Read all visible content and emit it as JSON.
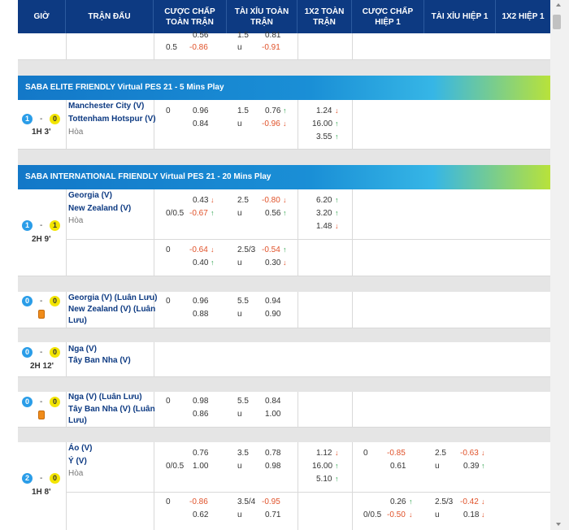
{
  "headers": [
    "GIỜ",
    "TRẬN ĐẤU",
    "CƯỢC CHẤP TOÀN TRẬN",
    "TÀI XỈU TOÀN TRẬN",
    "1X2 TOÀN TRẬN",
    "CƯỢC CHẤP HIỆP 1",
    "TÀI XỈU HIỆP 1",
    "1X2 HIỆP 1"
  ],
  "top_partial": {
    "hcap_line": "0.5",
    "hcap_top": "0.56",
    "hcap_bot": "-0.86",
    "ou_top_line": "1.5",
    "ou_top": "0.81",
    "ou_bot_line": "u",
    "ou_bot": "-0.91"
  },
  "leagues": [
    "SABA ELITE FRIENDLY Virtual PES 21 - 5 Mins Play",
    "SABA INTERNATIONAL FRIENDLY Virtual PES 21 - 20 Mins Play"
  ],
  "matches": {
    "m1": {
      "home": "Manchester City (V)",
      "away": "Tottenham Hotspur (V)",
      "draw": "Hòa",
      "score_h": "1",
      "score_a": "0",
      "time": "1H 3'",
      "hcap_line": "0",
      "hcap_top": "0.96",
      "hcap_bot": "0.84",
      "ou_line": "1.5",
      "ou_u": "u",
      "ou_top": "0.76",
      "ou_bot": "-0.96",
      "x1": "1.24",
      "x2": "16.00",
      "x3": "3.55"
    },
    "m2": {
      "home": "Georgia (V)",
      "away": "New Zealand (V)",
      "draw": "Hòa",
      "score_h": "1",
      "score_a": "1",
      "time": "2H 9'",
      "hcap_line": "0/0.5",
      "hcap_top": "0.43",
      "hcap_bot": "-0.67",
      "ou_line": "2.5",
      "ou_u": "u",
      "ou_top": "-0.80",
      "ou_bot": "0.56",
      "x1": "6.20",
      "x2": "3.20",
      "x3": "1.48",
      "r2_hcap_line": "0",
      "r2_hcap_top": "-0.64",
      "r2_hcap_bot": "0.40",
      "r2_ou_line": "2.5/3",
      "r2_ou_u": "u",
      "r2_ou_top": "-0.54",
      "r2_ou_bot": "0.30"
    },
    "m3": {
      "home": "Georgia (V) (Luân Lưu)",
      "away1": "New Zealand (V) (Luân",
      "away2": "Lưu)",
      "score_h": "0",
      "score_a": "0",
      "hcap_line": "0",
      "hcap_top": "0.96",
      "hcap_bot": "0.88",
      "ou_line": "5.5",
      "ou_u": "u",
      "ou_top": "0.94",
      "ou_bot": "0.90"
    },
    "m4": {
      "home": "Nga (V)",
      "away": "Tây Ban Nha (V)",
      "score_h": "0",
      "score_a": "0",
      "time": "2H 12'"
    },
    "m5": {
      "home": "Nga (V) (Luân Lưu)",
      "away1": "Tây Ban Nha (V) (Luân",
      "away2": "Lưu)",
      "score_h": "0",
      "score_a": "0",
      "hcap_line": "0",
      "hcap_top": "0.98",
      "hcap_bot": "0.86",
      "ou_line": "5.5",
      "ou_u": "u",
      "ou_top": "0.84",
      "ou_bot": "1.00"
    },
    "m6": {
      "home": "Áo (V)",
      "away": "Ý (V)",
      "draw": "Hòa",
      "score_h": "2",
      "score_a": "0",
      "time": "1H 8'",
      "hcap_line": "0/0.5",
      "hcap_top": "0.76",
      "hcap_bot": "1.00",
      "ou_line": "3.5",
      "ou_u": "u",
      "ou_top": "0.78",
      "ou_bot": "0.98",
      "x1": "1.12",
      "x2": "16.00",
      "x3": "5.10",
      "h1_hcap_line": "0",
      "h1_hcap_top": "-0.85",
      "h1_hcap_bot": "0.61",
      "h1_ou_line": "2.5",
      "h1_ou_u": "u",
      "h1_ou_top": "-0.63",
      "h1_ou_bot": "0.39",
      "r2_hcap_line": "0",
      "r2_hcap_top": "-0.86",
      "r2_hcap_bot": "0.62",
      "r2_ou_line": "3.5/4",
      "r2_ou_u": "u",
      "r2_ou_top": "-0.95",
      "r2_ou_bot": "0.71",
      "r2_h1_hcap_line": "0/0.5",
      "r2_h1_hcap_top": "0.26",
      "r2_h1_hcap_bot": "-0.50",
      "r2_h1_ou_line": "2.5/3",
      "r2_h1_ou_u": "u",
      "r2_h1_ou_top": "-0.42",
      "r2_h1_ou_bot": "0.18"
    }
  },
  "score_dash": "-",
  "colors": {
    "header": "#0d3a82",
    "team": "#0d3a82",
    "negative": "#e0522a",
    "up_arrow": "#2aa04a",
    "down_arrow": "#e0522a"
  }
}
